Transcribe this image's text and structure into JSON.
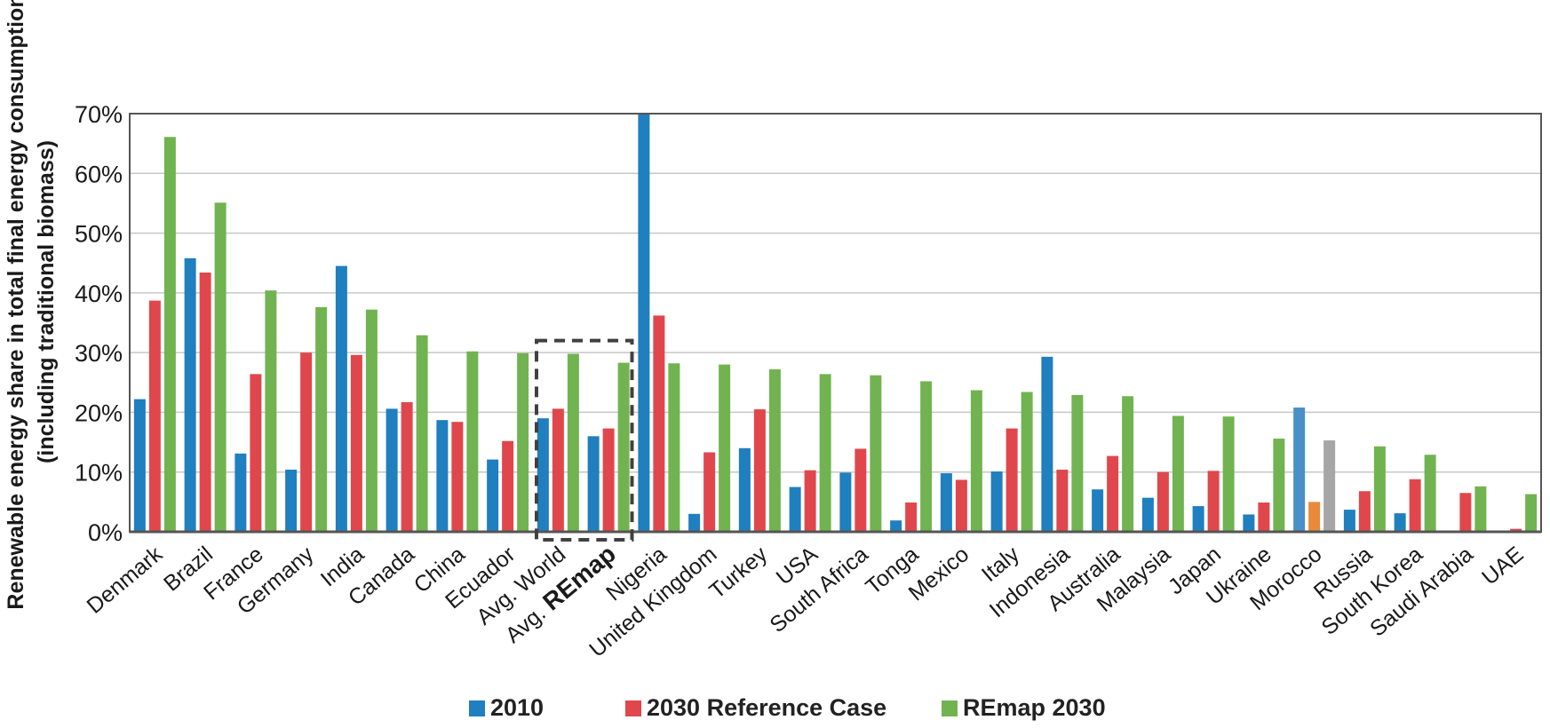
{
  "chart_data": {
    "type": "bar",
    "ylabel_line1": "Renewable energy share in total final energy consumption",
    "ylabel_line2": "(including traditional biomass)",
    "xlabel": "",
    "ylim": [
      0,
      70
    ],
    "yticks": [
      0,
      10,
      20,
      30,
      40,
      50,
      60,
      70
    ],
    "ytick_labels": [
      "0%",
      "10%",
      "20%",
      "30%",
      "40%",
      "50%",
      "60%",
      "70%"
    ],
    "grid": true,
    "legend_position": "bottom",
    "categories": [
      "Denmark",
      "Brazil",
      "France",
      "Germany",
      "India",
      "Canada",
      "China",
      "Ecuador",
      "Avg. World",
      "Avg. REmap",
      "Nigeria",
      "United Kingdom",
      "Turkey",
      "USA",
      "South Africa",
      "Tonga",
      "Mexico",
      "Italy",
      "Indonesia",
      "Australia",
      "Malaysia",
      "Japan",
      "Ukraine",
      "Morocco",
      "Russia",
      "South Korea",
      "Saudi Arabia",
      "UAE"
    ],
    "highlight": {
      "categories": [
        "Avg. World",
        "Avg. REmap"
      ],
      "style": "dashed-box",
      "emphasized_word": "REmap"
    },
    "series": [
      {
        "name": "2010",
        "color": "#1f7fbf",
        "values": [
          22.2,
          45.8,
          13.1,
          10.4,
          44.5,
          20.6,
          18.7,
          12.1,
          19.0,
          16.0,
          70.0,
          3.0,
          14.0,
          7.5,
          9.9,
          1.9,
          9.8,
          10.1,
          29.3,
          7.1,
          5.7,
          4.3,
          2.9,
          20.8,
          3.7,
          3.1,
          0.1,
          0.1
        ]
      },
      {
        "name": "2030 Reference Case",
        "color": "#e0474c",
        "values": [
          38.7,
          43.4,
          26.4,
          30.0,
          29.6,
          21.7,
          18.4,
          15.2,
          20.6,
          17.3,
          36.2,
          13.3,
          20.5,
          10.3,
          13.9,
          4.9,
          8.7,
          17.3,
          10.4,
          12.7,
          10.0,
          10.2,
          4.9,
          5.0,
          6.8,
          8.8,
          6.5,
          0.5
        ]
      },
      {
        "name": "REmap 2030",
        "color": "#72b351",
        "values": [
          66.1,
          55.1,
          40.4,
          37.6,
          37.2,
          32.9,
          30.2,
          29.9,
          29.8,
          28.3,
          28.2,
          28.0,
          27.2,
          26.4,
          26.2,
          25.2,
          23.7,
          23.4,
          22.9,
          22.7,
          19.4,
          19.3,
          15.6,
          15.3,
          14.3,
          12.9,
          7.6,
          6.3
        ]
      }
    ],
    "overrides": [
      {
        "category": "Morocco",
        "series": "2010",
        "color": "#4a90c8"
      },
      {
        "category": "Morocco",
        "series": "2030 Reference Case",
        "color": "#e88a3a"
      },
      {
        "category": "Morocco",
        "series": "REmap 2030",
        "color": "#a6a6a6"
      }
    ],
    "colors": {
      "axis": "#555555",
      "grid": "#c8c8c8",
      "highlight_box": "#404040"
    }
  }
}
